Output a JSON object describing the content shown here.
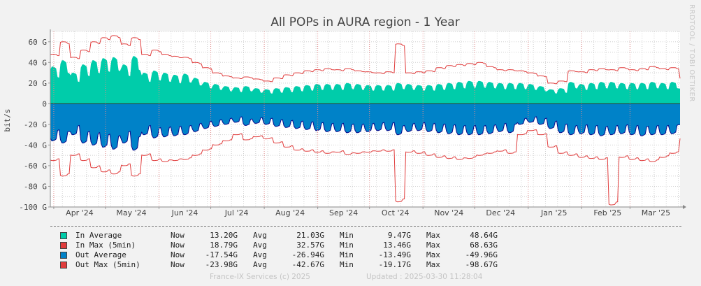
{
  "chart_data": {
    "type": "area",
    "title": "All POPs in AURA region - 1 Year",
    "ylabel": "bit/s",
    "watermark": "RRDTOOL / TOBI OETIKER",
    "ylim": [
      -100,
      70
    ],
    "yticks": [
      60,
      40,
      20,
      0,
      -20,
      -40,
      -60,
      -80,
      -100
    ],
    "ytick_labels": [
      "60 G",
      "40 G",
      "20 G",
      "0",
      "-20 G",
      "-40 G",
      "-60 G",
      "-80 G",
      "-100 G"
    ],
    "xtick_labels": [
      "Apr '24",
      "May '24",
      "Jun '24",
      "Jul '24",
      "Aug '24",
      "Sep '24",
      "Oct '24",
      "Nov '24",
      "Dec '24",
      "Jan '25",
      "Feb '25",
      "Mar '25"
    ],
    "grid": true,
    "x_range": [
      "2024-03-30",
      "2025-03-30"
    ],
    "colors": {
      "in_avg": "#00ccaa",
      "in_max": "#e03c3c",
      "out_avg": "#0082c8",
      "out_max": "#e03c3c",
      "out_edge": "#0a0a8c",
      "background": "#ffffff",
      "grid": "#d0d0d0",
      "canvas": "#f2f2f2"
    },
    "series": [
      {
        "name": "In Average",
        "unit": "G",
        "weekly": [
          36,
          42,
          30,
          38,
          42,
          44,
          45,
          38,
          46,
          30,
          32,
          30,
          28,
          29,
          25,
          21,
          19,
          17,
          16,
          17,
          15,
          14,
          15,
          16,
          17,
          18,
          19,
          19,
          19,
          20,
          19,
          18,
          18,
          18,
          20,
          19,
          18,
          18,
          19,
          20,
          21,
          22,
          22,
          21,
          20,
          20,
          20,
          19,
          17,
          14,
          15,
          21,
          19,
          20,
          21,
          21,
          20,
          20,
          20,
          21,
          20,
          21
        ]
      },
      {
        "name": "In Max (5min)",
        "unit": "G",
        "weekly": [
          48,
          60,
          45,
          52,
          60,
          64,
          66,
          58,
          64,
          48,
          52,
          48,
          46,
          45,
          40,
          35,
          30,
          27,
          25,
          26,
          24,
          22,
          25,
          28,
          30,
          32,
          33,
          34,
          33,
          34,
          32,
          31,
          30,
          31,
          58,
          30,
          31,
          32,
          35,
          37,
          38,
          39,
          40,
          36,
          33,
          33,
          32,
          30,
          27,
          20,
          22,
          32,
          31,
          33,
          34,
          33,
          35,
          33,
          34,
          36,
          34,
          35
        ]
      },
      {
        "name": "Out Average",
        "unit": "G",
        "weekly": [
          -36,
          -38,
          -30,
          -38,
          -40,
          -42,
          -44,
          -38,
          -45,
          -30,
          -33,
          -32,
          -31,
          -30,
          -27,
          -24,
          -22,
          -20,
          -18,
          -21,
          -19,
          -20,
          -22,
          -23,
          -24,
          -25,
          -26,
          -27,
          -27,
          -28,
          -28,
          -27,
          -26,
          -26,
          -30,
          -27,
          -26,
          -27,
          -28,
          -29,
          -30,
          -30,
          -30,
          -29,
          -27,
          -28,
          -20,
          -18,
          -20,
          -24,
          -28,
          -30,
          -29,
          -30,
          -31,
          -30,
          -29,
          -30,
          -31,
          -30,
          -30,
          -29
        ]
      },
      {
        "name": "Out Max (5min)",
        "unit": "G",
        "weekly": [
          -55,
          -70,
          -50,
          -55,
          -62,
          -66,
          -68,
          -60,
          -70,
          -50,
          -55,
          -56,
          -55,
          -54,
          -50,
          -45,
          -40,
          -36,
          -30,
          -35,
          -32,
          -34,
          -38,
          -42,
          -45,
          -46,
          -47,
          -48,
          -47,
          -49,
          -48,
          -47,
          -46,
          -46,
          -95,
          -47,
          -48,
          -50,
          -52,
          -53,
          -54,
          -53,
          -50,
          -48,
          -46,
          -48,
          -30,
          -26,
          -30,
          -42,
          -48,
          -50,
          -52,
          -53,
          -54,
          -98,
          -52,
          -54,
          -55,
          -56,
          -52,
          -48
        ]
      }
    ]
  },
  "legend": [
    {
      "name": "In Average",
      "now": "13.20G",
      "avg": "21.03G",
      "min": "9.47G",
      "max": "48.64G",
      "color": "#00ccaa"
    },
    {
      "name": "In Max (5min)",
      "now": "18.79G",
      "avg": "32.57G",
      "min": "13.46G",
      "max": "68.63G",
      "color": "#e03c3c"
    },
    {
      "name": "Out Average",
      "now": "-17.54G",
      "avg": "-26.94G",
      "min": "-13.49G",
      "max": "-49.96G",
      "color": "#0082c8"
    },
    {
      "name": "Out Max (5min)",
      "now": "-23.98G",
      "avg": "-42.67G",
      "min": "-19.17G",
      "max": "-98.67G",
      "color": "#e03c3c"
    }
  ],
  "legend_labels": {
    "now": "Now",
    "avg": "Avg",
    "min": "Min",
    "max": "Max"
  },
  "footer": {
    "copyright": "France-IX Services (c) 2025",
    "updated": "Updated : 2025-03-30 11:28:04"
  }
}
